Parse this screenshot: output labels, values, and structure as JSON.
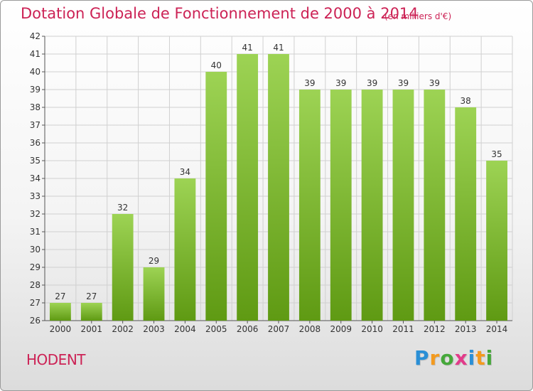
{
  "title": "Dotation Globale de Fonctionnement de 2000 à 2014",
  "subtitle": "(en milliers d'€)",
  "town": "HODENT",
  "logo": {
    "letters": [
      "P",
      "r",
      "o",
      "x",
      "i",
      "t",
      "i"
    ],
    "colors": [
      "#2a8fd6",
      "#f39a1e",
      "#45a83a",
      "#e23b8a",
      "#2a8fd6",
      "#f39a1e",
      "#45a83a"
    ]
  },
  "colors": {
    "accent": "#cc2255",
    "bar_top": "#9dd354",
    "bar_bottom": "#5f9a13",
    "grid": "#d0d0d0"
  },
  "chart_data": {
    "type": "bar",
    "categories": [
      "2000",
      "2001",
      "2002",
      "2003",
      "2004",
      "2005",
      "2006",
      "2007",
      "2008",
      "2009",
      "2010",
      "2011",
      "2012",
      "2013",
      "2014"
    ],
    "values": [
      27,
      27,
      32,
      29,
      34,
      40,
      41,
      41,
      39,
      39,
      39,
      39,
      39,
      38,
      35
    ],
    "ylim": [
      26,
      42
    ],
    "yticks": [
      26,
      27,
      28,
      29,
      30,
      31,
      32,
      33,
      34,
      35,
      36,
      37,
      38,
      39,
      40,
      41,
      42
    ],
    "grid": true,
    "data_labels": true
  }
}
